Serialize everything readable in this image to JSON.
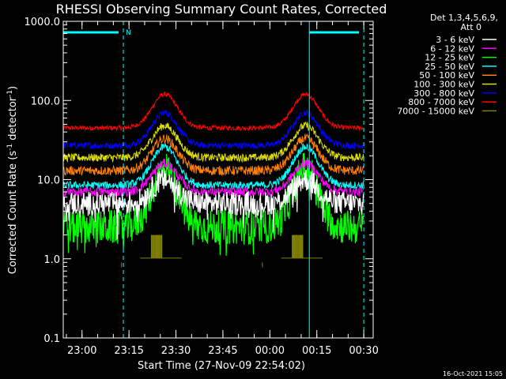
{
  "chart_data": {
    "type": "line",
    "title": "RHESSI Observing Summary Count Rates, Corrected",
    "xlabel": "Start Time (27-Nov-09 22:54:02)",
    "ylabel_main": "Corrected Count Rate (s",
    "ylabel_sup1": "-1",
    "ylabel_mid": " detector",
    "ylabel_sup2": "-1",
    "ylabel_end": ")",
    "y_scale": "log",
    "ylim": [
      0.1,
      1000
    ],
    "xlim": [
      22.9,
      24.55
    ],
    "y_ticks": [
      {
        "value": 0.1,
        "label": "0.1"
      },
      {
        "value": 1,
        "label": "1.0"
      },
      {
        "value": 10,
        "label": "10.0"
      },
      {
        "value": 100,
        "label": "100.0"
      },
      {
        "value": 1000,
        "label": "1000.0"
      }
    ],
    "x_ticks": [
      {
        "value": 23.0,
        "label": "23:00"
      },
      {
        "value": 23.25,
        "label": "23:15"
      },
      {
        "value": 23.5,
        "label": "23:30"
      },
      {
        "value": 23.75,
        "label": "23:45"
      },
      {
        "value": 24.0,
        "label": "00:00"
      },
      {
        "value": 24.25,
        "label": "00:15"
      },
      {
        "value": 24.5,
        "label": "00:30"
      }
    ],
    "legend_header": [
      "Det 1,3,4,5,6,9,",
      "Att 0"
    ],
    "legend_position": "right",
    "night_flag": {
      "label": "N",
      "color": "#00ffff",
      "intervals": [
        [
          22.9,
          23.22
        ],
        [
          24.21,
          24.5
        ]
      ]
    },
    "vertical_markers": [
      {
        "x": 22.9,
        "style": "solid"
      },
      {
        "x": 23.22,
        "style": "dashed"
      },
      {
        "x": 24.21,
        "style": "solid"
      },
      {
        "x": 24.5,
        "style": "dashed"
      }
    ],
    "peaks": [
      23.44,
      24.19
    ],
    "series": [
      {
        "name": "3 - 6 keV",
        "color": "#ffffff",
        "base": 5,
        "peak": 10,
        "noise": 0.15
      },
      {
        "name": "6 - 12 keV",
        "color": "#ff00ff",
        "base": 7,
        "peak": 16,
        "noise": 0.06
      },
      {
        "name": "12 - 25 keV",
        "color": "#00ff00",
        "base": 2.5,
        "peak": 14,
        "noise": 0.22
      },
      {
        "name": "25 - 50 keV",
        "color": "#00ffff",
        "base": 8.5,
        "peak": 26,
        "noise": 0.05
      },
      {
        "name": "50 - 100 keV",
        "color": "#ff8000",
        "base": 13,
        "peak": 33,
        "noise": 0.06
      },
      {
        "name": "100 - 300 keV",
        "color": "#e0e000",
        "base": 19,
        "peak": 48,
        "noise": 0.05
      },
      {
        "name": "300 - 800 keV",
        "color": "#0000ff",
        "base": 27,
        "peak": 70,
        "noise": 0.04
      },
      {
        "name": "800 - 7000 keV",
        "color": "#ff0000",
        "base": 45,
        "peak": 120,
        "noise": 0.03
      },
      {
        "name": "7000 - 15000 keV",
        "color": "#808000",
        "base": 1,
        "peak": 2,
        "noise": 0.0
      }
    ],
    "timestamp": "16-Oct-2021 15:05"
  }
}
